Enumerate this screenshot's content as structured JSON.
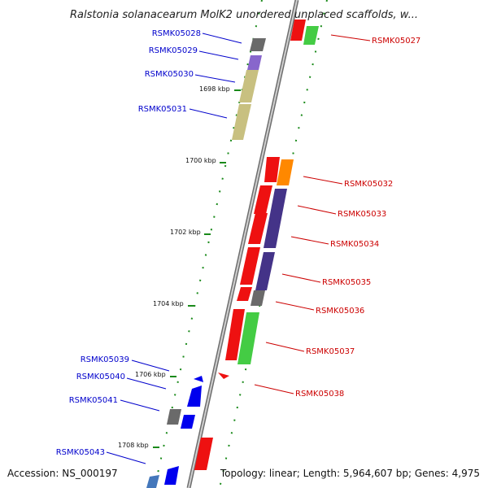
{
  "title": "Ralstonia solanacearum MolK2 unordered unplaced scaffolds, w...",
  "footer": {
    "accession": "Accession: NS_000197",
    "topology": "Topology: linear; Length: 5,964,607 bp; Genes: 4,975"
  },
  "colors": {
    "left_label": "#0000cc",
    "right_label": "#cc0000",
    "backbone": "#9a9a9a",
    "tick_mark": "#1a8a1a"
  },
  "ticks": [
    "1698 kbp",
    "1700 kbp",
    "1702 kbp",
    "1704 kbp",
    "1706 kbp",
    "1708 kbp"
  ],
  "genes_left": [
    {
      "label": "RSMK05028"
    },
    {
      "label": "RSMK05029"
    },
    {
      "label": "RSMK05030"
    },
    {
      "label": "RSMK05031"
    },
    {
      "label": "RSMK05039"
    },
    {
      "label": "RSMK05040"
    },
    {
      "label": "RSMK05041"
    },
    {
      "label": "RSMK05043"
    }
  ],
  "genes_right": [
    {
      "label": "RSMK05027"
    },
    {
      "label": "RSMK05032"
    },
    {
      "label": "RSMK05033"
    },
    {
      "label": "RSMK05034"
    },
    {
      "label": "RSMK05035"
    },
    {
      "label": "RSMK05036"
    },
    {
      "label": "RSMK05037"
    },
    {
      "label": "RSMK05038"
    }
  ]
}
